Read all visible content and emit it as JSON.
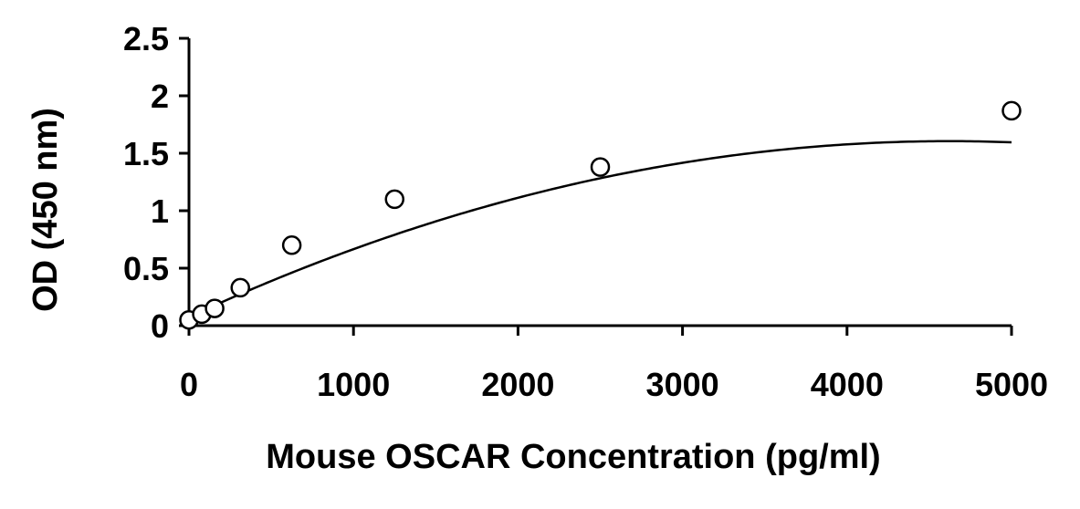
{
  "chart_data": {
    "type": "scatter",
    "title": "",
    "xlabel": "Mouse OSCAR Concentration (pg/ml)",
    "ylabel": "OD (450 nm)",
    "xlim": [
      0,
      5000
    ],
    "ylim": [
      0,
      2.5
    ],
    "x_ticks": [
      0,
      1000,
      2000,
      3000,
      4000,
      5000
    ],
    "x_tick_labels": [
      "0",
      "1000",
      "2000",
      "3000",
      "4000",
      "5000"
    ],
    "y_ticks": [
      0,
      0.5,
      1,
      1.5,
      2,
      2.5
    ],
    "y_tick_labels": [
      "0",
      "0.5",
      "1",
      "1.5",
      "2",
      "2.5"
    ],
    "grid": false,
    "legend": "none",
    "series": [
      {
        "marker": "open-circle",
        "points": [
          {
            "x": 0,
            "y": 0.05
          },
          {
            "x": 78,
            "y": 0.1
          },
          {
            "x": 156,
            "y": 0.15
          },
          {
            "x": 312,
            "y": 0.33
          },
          {
            "x": 625,
            "y": 0.7
          },
          {
            "x": 1250,
            "y": 1.1
          },
          {
            "x": 2500,
            "y": 1.38
          },
          {
            "x": 5000,
            "y": 1.87
          }
        ]
      }
    ],
    "fit": {
      "type": "polynomial-2",
      "coefficients": [
        0.075,
        0.000662,
        -7.16e-08
      ]
    }
  }
}
